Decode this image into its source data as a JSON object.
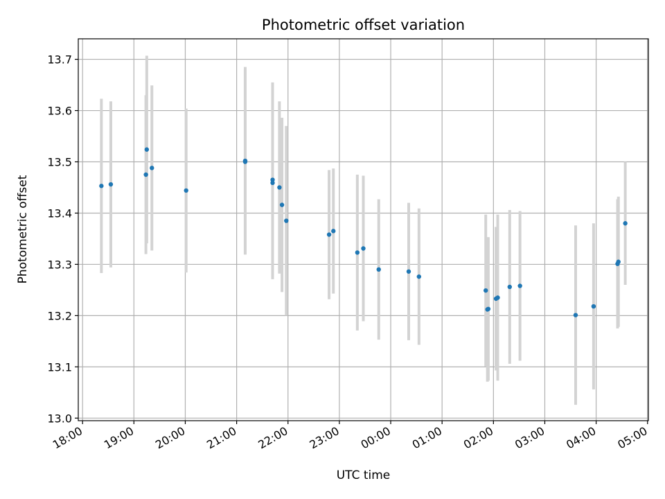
{
  "chart_data": {
    "type": "scatter",
    "title": "Photometric offset variation",
    "xlabel": "UTC time",
    "ylabel": "Photometric offset",
    "x_axis": "time",
    "x_ticks": [
      "18:00",
      "19:00",
      "20:00",
      "21:00",
      "22:00",
      "23:00",
      "00:00",
      "01:00",
      "02:00",
      "03:00",
      "04:00",
      "05:00"
    ],
    "y_ticks": [
      "13.0",
      "13.1",
      "13.2",
      "13.3",
      "13.4",
      "13.5",
      "13.6",
      "13.7"
    ],
    "xlim": [
      "17:55",
      "29:01"
    ],
    "ylim": [
      12.995,
      13.74
    ],
    "grid": true,
    "colors": {
      "points": "#1f77b4",
      "error_bars": "#d3d3d3",
      "grid": "#b0b0b0"
    },
    "series": [
      {
        "points": [
          {
            "x": "18:22",
            "y": 13.453,
            "err": 0.17
          },
          {
            "x": "18:33",
            "y": 13.456,
            "err": 0.162
          },
          {
            "x": "19:14",
            "y": 13.475,
            "err": 0.155
          },
          {
            "x": "19:15",
            "y": 13.524,
            "err": 0.183
          },
          {
            "x": "19:21",
            "y": 13.488,
            "err": 0.161
          },
          {
            "x": "20:01",
            "y": 13.444,
            "err": 0.16
          },
          {
            "x": "21:10",
            "y": 13.502,
            "err": 0.183
          },
          {
            "x": "21:10",
            "y": 13.5,
            "err": 0.18
          },
          {
            "x": "21:42",
            "y": 13.465,
            "err": 0.19
          },
          {
            "x": "21:42",
            "y": 13.459,
            "err": 0.188
          },
          {
            "x": "21:50",
            "y": 13.45,
            "err": 0.168
          },
          {
            "x": "21:53",
            "y": 13.416,
            "err": 0.17
          },
          {
            "x": "21:58",
            "y": 13.385,
            "err": 0.185
          },
          {
            "x": "22:48",
            "y": 13.358,
            "err": 0.126
          },
          {
            "x": "22:53",
            "y": 13.365,
            "err": 0.122
          },
          {
            "x": "23:21",
            "y": 13.323,
            "err": 0.152
          },
          {
            "x": "23:28",
            "y": 13.331,
            "err": 0.142
          },
          {
            "x": "23:46",
            "y": 13.29,
            "err": 0.137
          },
          {
            "x": "24:21",
            "y": 13.286,
            "err": 0.134
          },
          {
            "x": "24:33",
            "y": 13.276,
            "err": 0.133
          },
          {
            "x": "25:51",
            "y": 13.249,
            "err": 0.148
          },
          {
            "x": "25:53",
            "y": 13.212,
            "err": 0.141
          },
          {
            "x": "25:54",
            "y": 13.213,
            "err": 0.14
          },
          {
            "x": "26:03",
            "y": 13.233,
            "err": 0.14
          },
          {
            "x": "26:05",
            "y": 13.235,
            "err": 0.162
          },
          {
            "x": "26:19",
            "y": 13.256,
            "err": 0.15
          },
          {
            "x": "26:31",
            "y": 13.258,
            "err": 0.146
          },
          {
            "x": "27:36",
            "y": 13.201,
            "err": 0.175
          },
          {
            "x": "27:57",
            "y": 13.218,
            "err": 0.162
          },
          {
            "x": "28:25",
            "y": 13.301,
            "err": 0.126
          },
          {
            "x": "28:26",
            "y": 13.305,
            "err": 0.127
          },
          {
            "x": "28:34",
            "y": 13.38,
            "err": 0.12
          }
        ]
      }
    ]
  }
}
